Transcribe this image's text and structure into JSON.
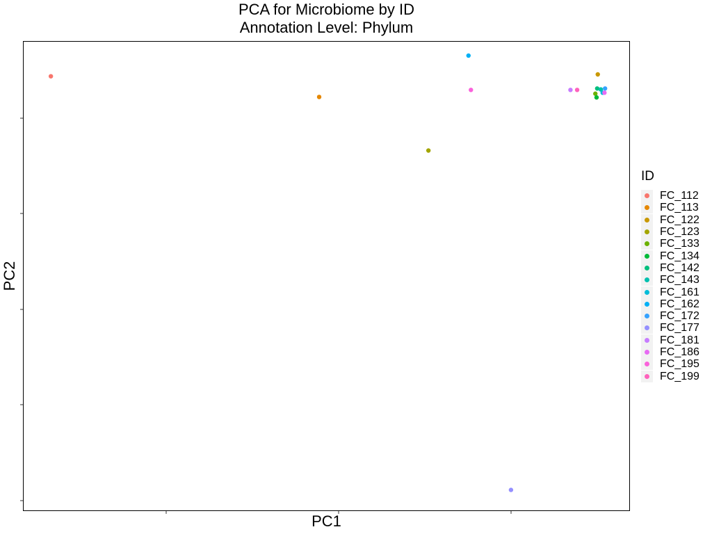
{
  "chart_data": {
    "type": "scatter",
    "title": "PCA for Microbiome by ID",
    "subtitle": "Annotation Level: Phylum",
    "xlabel": "PC1",
    "ylabel": "PC2",
    "xlim": [
      0,
      100
    ],
    "ylim": [
      0,
      100
    ],
    "grid": false,
    "legend": {
      "title": "ID",
      "position": "right"
    },
    "series": [
      {
        "name": "FC_112",
        "color": "#F8766D",
        "points": [
          {
            "x": 4.6,
            "y": 92.5
          }
        ]
      },
      {
        "name": "FC_113",
        "color": "#E58700",
        "points": [
          {
            "x": 48.8,
            "y": 88.1
          }
        ]
      },
      {
        "name": "FC_122",
        "color": "#C99800",
        "points": [
          {
            "x": 94.7,
            "y": 92.9
          }
        ]
      },
      {
        "name": "FC_123",
        "color": "#A3A500",
        "points": [
          {
            "x": 66.8,
            "y": 76.7
          }
        ]
      },
      {
        "name": "FC_133",
        "color": "#6BB100",
        "points": [
          {
            "x": 94.3,
            "y": 88.8
          }
        ]
      },
      {
        "name": "FC_134",
        "color": "#00BA38",
        "points": [
          {
            "x": 94.5,
            "y": 88.0
          }
        ]
      },
      {
        "name": "FC_142",
        "color": "#00BF7D",
        "points": [
          {
            "x": 94.6,
            "y": 89.9
          }
        ]
      },
      {
        "name": "FC_143",
        "color": "#00C0AF",
        "points": [
          {
            "x": 95.2,
            "y": 89.7
          }
        ]
      },
      {
        "name": "FC_161",
        "color": "#00BCD8",
        "points": [
          {
            "x": 95.5,
            "y": 89.0
          }
        ]
      },
      {
        "name": "FC_162",
        "color": "#00B0F6",
        "points": [
          {
            "x": 73.4,
            "y": 96.9
          }
        ]
      },
      {
        "name": "FC_172",
        "color": "#35A2FF",
        "points": [
          {
            "x": 95.9,
            "y": 89.9
          }
        ]
      },
      {
        "name": "FC_177",
        "color": "#9590FF",
        "points": [
          {
            "x": 80.4,
            "y": 4.5
          }
        ]
      },
      {
        "name": "FC_181",
        "color": "#C77CFF",
        "points": [
          {
            "x": 90.2,
            "y": 89.6
          }
        ]
      },
      {
        "name": "FC_186",
        "color": "#E76BF3",
        "points": [
          {
            "x": 95.8,
            "y": 89.0
          }
        ]
      },
      {
        "name": "FC_195",
        "color": "#FA62DB",
        "points": [
          {
            "x": 73.8,
            "y": 89.6
          }
        ]
      },
      {
        "name": "FC_199",
        "color": "#FF62BC",
        "points": [
          {
            "x": 91.3,
            "y": 89.6
          }
        ]
      }
    ]
  }
}
